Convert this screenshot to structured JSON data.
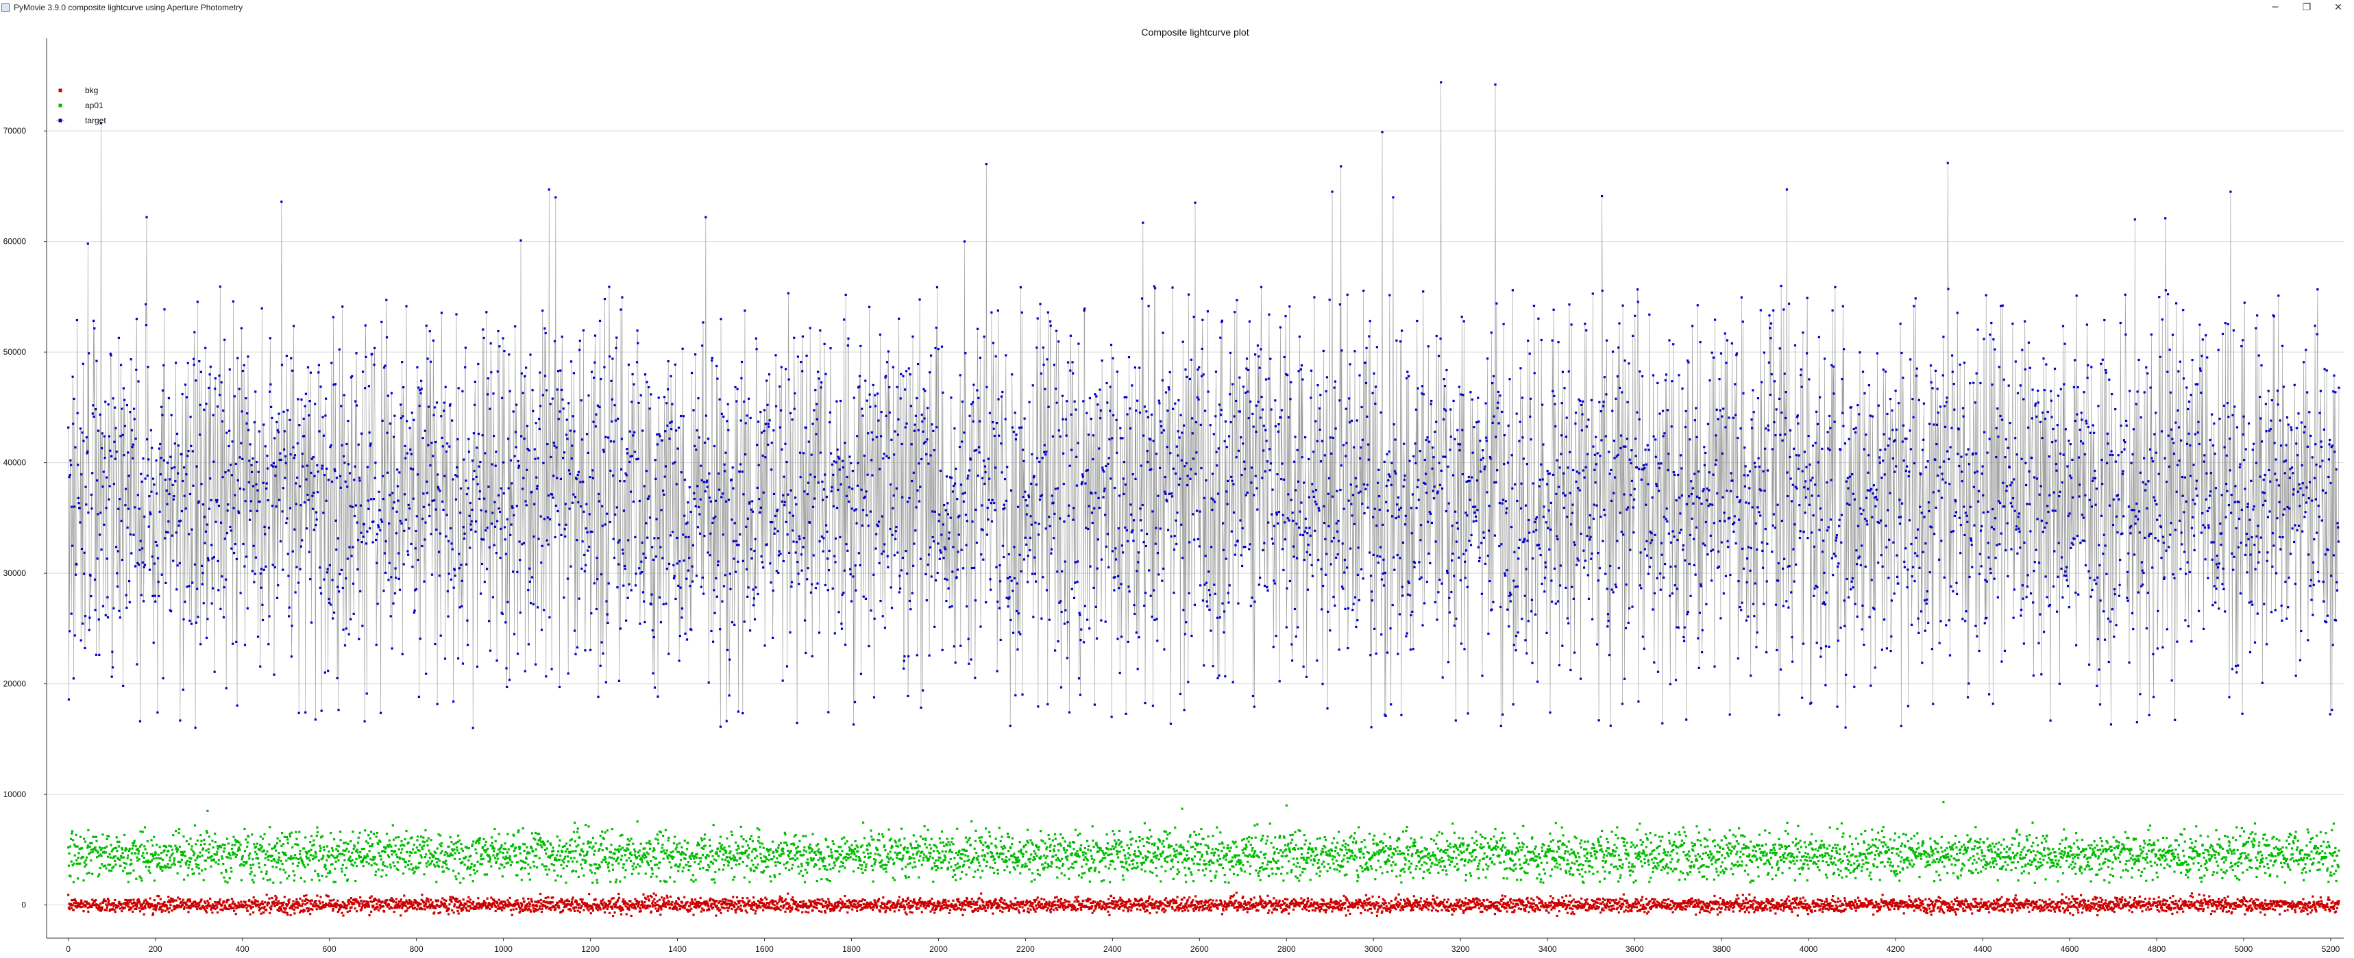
{
  "window": {
    "title": "PyMovie 3.9.0 composite lightcurve using Aperture Photometry",
    "icon": "app-icon",
    "controls": {
      "minimize_glyph": "─",
      "restore_glyph": "❐",
      "close_glyph": "✕"
    }
  },
  "chart_data": {
    "type": "scatter",
    "title": "Composite lightcurve plot",
    "xlabel": "",
    "ylabel": "",
    "xlim": [
      -50,
      5230
    ],
    "ylim": [
      -3000,
      78000
    ],
    "xticks": [
      0,
      200,
      400,
      600,
      800,
      1000,
      1200,
      1400,
      1600,
      1800,
      2000,
      2200,
      2400,
      2600,
      2800,
      3000,
      3200,
      3400,
      3600,
      3800,
      4000,
      4200,
      4400,
      4600,
      4800,
      5000,
      5200
    ],
    "yticks": [
      0,
      10000,
      20000,
      30000,
      40000,
      50000,
      60000,
      70000
    ],
    "grid": {
      "x": false,
      "y": true
    },
    "legend": {
      "placement": "top-left"
    },
    "n_points": 5220,
    "series": [
      {
        "name": "bkg",
        "color": "#cc0000",
        "connected": false,
        "mean": 0,
        "range": [
          -1000,
          1200
        ],
        "highlights": []
      },
      {
        "name": "ap01",
        "color": "#00bb00",
        "connected": false,
        "mean": 4500,
        "range": [
          2000,
          9300
        ],
        "highlights": [
          {
            "x": 320,
            "y": 8500
          },
          {
            "x": 2560,
            "y": 8700
          },
          {
            "x": 2800,
            "y": 9000
          },
          {
            "x": 4310,
            "y": 9300
          }
        ]
      },
      {
        "name": "target",
        "color": "#0000cc",
        "connected": true,
        "line_color": "#888888",
        "mean": 37000,
        "range": [
          16000,
          74500
        ],
        "highlights": [
          {
            "x": 45,
            "y": 59800
          },
          {
            "x": 75,
            "y": 70700
          },
          {
            "x": 180,
            "y": 62200
          },
          {
            "x": 490,
            "y": 63600
          },
          {
            "x": 930,
            "y": 16000
          },
          {
            "x": 1040,
            "y": 60100
          },
          {
            "x": 1105,
            "y": 64700
          },
          {
            "x": 1120,
            "y": 64000
          },
          {
            "x": 1465,
            "y": 62200
          },
          {
            "x": 2060,
            "y": 60000
          },
          {
            "x": 2110,
            "y": 67000
          },
          {
            "x": 2470,
            "y": 61700
          },
          {
            "x": 2590,
            "y": 63500
          },
          {
            "x": 2905,
            "y": 64500
          },
          {
            "x": 2925,
            "y": 66800
          },
          {
            "x": 3020,
            "y": 69900
          },
          {
            "x": 3045,
            "y": 64000
          },
          {
            "x": 3155,
            "y": 74400
          },
          {
            "x": 3280,
            "y": 74200
          },
          {
            "x": 3525,
            "y": 64100
          },
          {
            "x": 3545,
            "y": 16200
          },
          {
            "x": 3950,
            "y": 64700
          },
          {
            "x": 4320,
            "y": 67100
          },
          {
            "x": 4750,
            "y": 62000
          },
          {
            "x": 4820,
            "y": 62100
          },
          {
            "x": 4970,
            "y": 64500
          }
        ]
      }
    ]
  }
}
